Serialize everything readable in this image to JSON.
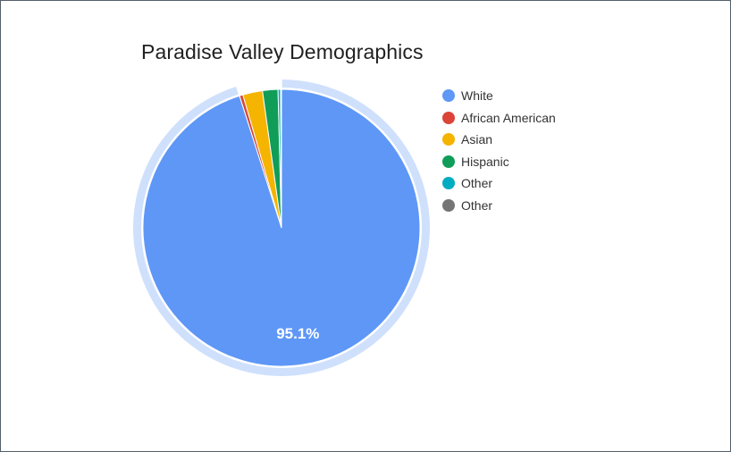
{
  "chart_data": {
    "type": "pie",
    "title": "Paradise Valley Demographics",
    "categories": [
      "White",
      "African American",
      "Asian",
      "Hispanic",
      "Other",
      "Other"
    ],
    "values": [
      95.1,
      0.4,
      2.3,
      1.8,
      0.3,
      0.1
    ],
    "colors": [
      "#5E97F6",
      "#DB4437",
      "#F4B400",
      "#0F9D58",
      "#00ACC1",
      "#757575"
    ],
    "data_labels": [
      "95.1%",
      "",
      "",
      "",
      "",
      ""
    ],
    "highlighted_series": "White",
    "legend_position": "right"
  }
}
